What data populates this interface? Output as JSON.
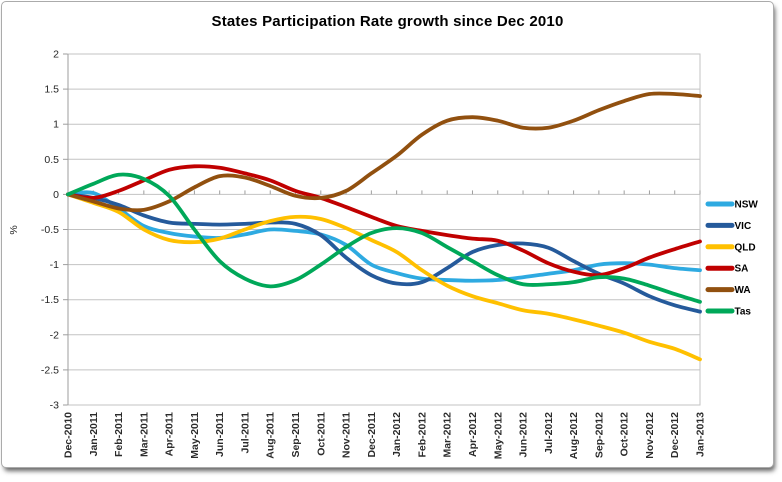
{
  "chart_data": {
    "type": "line",
    "title": "States Participation Rate growth since Dec 2010",
    "xlabel": "",
    "ylabel": "%",
    "ylim": [
      -3,
      2
    ],
    "ytick_step": 0.5,
    "y_tick_labels": [
      "2",
      "1.5",
      "1",
      "0.5",
      "0",
      "-0.5",
      "-1",
      "-1.5",
      "-2",
      "-2.5",
      "-3"
    ],
    "grid": true,
    "smoothed_lines": true,
    "legend_position": "right",
    "categories": [
      "Dec-2010",
      "Jan-2011",
      "Feb-2011",
      "Mar-2011",
      "Apr-2011",
      "May-2011",
      "Jun-2011",
      "Jul-2011",
      "Aug-2011",
      "Sep-2011",
      "Oct-2011",
      "Nov-2011",
      "Dec-2011",
      "Jan-2012",
      "Feb-2012",
      "Mar-2012",
      "Apr-2012",
      "May-2012",
      "Jun-2012",
      "Jul-2012",
      "Aug-2012",
      "Sep-2012",
      "Oct-2012",
      "Nov-2012",
      "Dec-2012",
      "Jan-2013"
    ],
    "series": [
      {
        "name": "NSW",
        "color": "#2EAAE1",
        "values": [
          0,
          0.02,
          -0.2,
          -0.45,
          -0.55,
          -0.6,
          -0.62,
          -0.57,
          -0.5,
          -0.52,
          -0.57,
          -0.72,
          -1.0,
          -1.12,
          -1.2,
          -1.22,
          -1.23,
          -1.22,
          -1.18,
          -1.13,
          -1.08,
          -1.0,
          -0.98,
          -1.0,
          -1.05,
          -1.08
        ]
      },
      {
        "name": "VIC",
        "color": "#255A9B",
        "values": [
          0,
          -0.05,
          -0.15,
          -0.3,
          -0.4,
          -0.42,
          -0.43,
          -0.42,
          -0.4,
          -0.42,
          -0.58,
          -0.9,
          -1.15,
          -1.27,
          -1.25,
          -1.05,
          -0.82,
          -0.72,
          -0.7,
          -0.76,
          -0.95,
          -1.13,
          -1.27,
          -1.45,
          -1.58,
          -1.67
        ]
      },
      {
        "name": "QLD",
        "color": "#FFC000",
        "values": [
          0,
          -0.12,
          -0.25,
          -0.5,
          -0.65,
          -0.68,
          -0.63,
          -0.5,
          -0.38,
          -0.32,
          -0.35,
          -0.48,
          -0.65,
          -0.82,
          -1.08,
          -1.3,
          -1.45,
          -1.55,
          -1.65,
          -1.7,
          -1.78,
          -1.87,
          -1.97,
          -2.1,
          -2.2,
          -2.35
        ]
      },
      {
        "name": "SA",
        "color": "#C00000",
        "values": [
          0,
          -0.05,
          0.05,
          0.2,
          0.35,
          0.4,
          0.38,
          0.3,
          0.2,
          0.05,
          -0.05,
          -0.18,
          -0.32,
          -0.45,
          -0.52,
          -0.58,
          -0.63,
          -0.66,
          -0.8,
          -0.98,
          -1.1,
          -1.15,
          -1.05,
          -0.9,
          -0.78,
          -0.67
        ]
      },
      {
        "name": "WA",
        "color": "#91500F",
        "values": [
          0,
          -0.1,
          -0.2,
          -0.22,
          -0.1,
          0.1,
          0.26,
          0.24,
          0.12,
          -0.02,
          -0.05,
          0.05,
          0.3,
          0.55,
          0.85,
          1.05,
          1.1,
          1.05,
          0.95,
          0.95,
          1.05,
          1.2,
          1.33,
          1.43,
          1.43,
          1.4
        ]
      },
      {
        "name": "Tas",
        "color": "#00A859",
        "values": [
          0,
          0.15,
          0.28,
          0.22,
          -0.02,
          -0.5,
          -0.95,
          -1.2,
          -1.31,
          -1.22,
          -1.0,
          -0.75,
          -0.55,
          -0.48,
          -0.55,
          -0.75,
          -0.95,
          -1.15,
          -1.28,
          -1.28,
          -1.25,
          -1.18,
          -1.2,
          -1.3,
          -1.42,
          -1.53
        ]
      }
    ]
  },
  "colors": {
    "gridline": "#C3C3C3",
    "axis": "#9E9E9E",
    "tick_label": "#262626",
    "x_label": "#2B2B2B",
    "legend_text": "#000000",
    "frame_border": "#ABABAB"
  }
}
